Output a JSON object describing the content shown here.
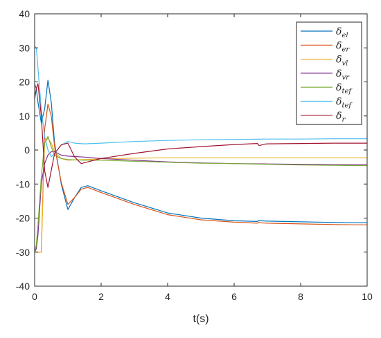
{
  "chart_data": {
    "type": "line",
    "xlabel": "t(s)",
    "ylabel": "",
    "xlim": [
      0,
      10
    ],
    "ylim": [
      -40,
      40
    ],
    "xticks": [
      0,
      2,
      4,
      6,
      8,
      10
    ],
    "yticks": [
      -40,
      -30,
      -20,
      -10,
      0,
      10,
      20,
      30,
      40
    ],
    "grid": false,
    "legend_placement": "top-right",
    "series": [
      {
        "name": "δel",
        "symbol": "δ",
        "subscript": "el",
        "color": "#0072BD",
        "x": [
          0,
          0.05,
          0.1,
          0.2,
          0.3,
          0.4,
          0.5,
          0.6,
          0.8,
          1.0,
          1.2,
          1.4,
          1.6,
          2,
          3,
          4,
          5,
          6,
          6.7,
          6.75,
          6.8,
          7,
          8,
          9,
          10
        ],
        "y": [
          19.5,
          18,
          14,
          8,
          12,
          20.5,
          14,
          2,
          -10,
          -17.5,
          -14,
          -11,
          -10.5,
          -12,
          -15.5,
          -18.5,
          -20,
          -20.8,
          -21,
          -20.6,
          -20.8,
          -20.9,
          -21.1,
          -21.3,
          -21.4
        ]
      },
      {
        "name": "δer",
        "symbol": "δ",
        "subscript": "er",
        "color": "#D95319",
        "x": [
          0,
          0.05,
          0.1,
          0.2,
          0.3,
          0.4,
          0.5,
          0.6,
          0.8,
          1.0,
          1.2,
          1.4,
          1.6,
          2,
          3,
          4,
          5,
          6,
          6.7,
          6.75,
          6.8,
          7,
          8,
          9,
          10
        ],
        "y": [
          -30,
          -30,
          -30,
          -30,
          6,
          13.5,
          10,
          1,
          -9.5,
          -16,
          -14,
          -11.5,
          -11,
          -12.5,
          -16,
          -19,
          -20.5,
          -21.2,
          -21.5,
          -21.2,
          -21.4,
          -21.5,
          -21.7,
          -21.9,
          -22
        ]
      },
      {
        "name": "δvl",
        "symbol": "δ",
        "subscript": "vl",
        "color": "#EDB120",
        "x": [
          0,
          0.05,
          0.1,
          0.2,
          0.3,
          0.4,
          0.5,
          0.6,
          0.8,
          1.0,
          1.5,
          2,
          3,
          4,
          5,
          6,
          7,
          8,
          9,
          10
        ],
        "y": [
          -30,
          -30,
          -30,
          -30,
          2,
          3.5,
          2,
          -0.5,
          -2.5,
          -3,
          -2.8,
          -2.6,
          -2.4,
          -2.3,
          -2.3,
          -2.3,
          -2.3,
          -2.3,
          -2.3,
          -2.3
        ]
      },
      {
        "name": "δvr",
        "symbol": "δ",
        "subscript": "vr",
        "color": "#7E2F8E",
        "x": [
          0,
          0.05,
          0.1,
          0.2,
          0.3,
          0.4,
          0.5,
          0.6,
          0.8,
          1.0,
          1.5,
          2,
          3,
          4,
          5,
          6,
          7,
          8,
          9,
          10
        ],
        "y": [
          -30,
          -29,
          -25,
          -10,
          -4,
          -1.5,
          -0.5,
          -0.5,
          -1.5,
          -1.8,
          -2.1,
          -2.5,
          -3,
          -3.5,
          -3.8,
          -4,
          -4.1,
          -4.2,
          -4.3,
          -4.3
        ]
      },
      {
        "name": "δtef",
        "symbol": "δ",
        "subscript": "tef",
        "color": "#77AC30",
        "x": [
          0,
          0.05,
          0.1,
          0.2,
          0.3,
          0.4,
          0.5,
          0.6,
          0.8,
          1.0,
          1.5,
          2,
          3,
          4,
          5,
          6,
          7,
          8,
          9,
          10
        ],
        "y": [
          -30,
          -28,
          -22,
          -8,
          2,
          4,
          1,
          -1.5,
          -2.5,
          -2.8,
          -3,
          -3,
          -3.3,
          -3.6,
          -3.9,
          -4,
          -4.2,
          -4.4,
          -4.5,
          -4.6
        ]
      },
      {
        "name": "δtef",
        "symbol": "δ",
        "subscript": "tef",
        "color": "#4DBEEE",
        "x": [
          0,
          0.05,
          0.1,
          0.2,
          0.3,
          0.4,
          0.5,
          0.6,
          0.8,
          1.0,
          1.2,
          1.5,
          2,
          3,
          4,
          5,
          6,
          7,
          8,
          9,
          10
        ],
        "y": [
          30.5,
          30,
          24,
          12,
          4,
          0,
          -2,
          -1,
          1.5,
          2.5,
          2,
          1.8,
          2,
          2.5,
          2.8,
          3,
          3.1,
          3.2,
          3.2,
          3.3,
          3.3
        ]
      },
      {
        "name": "δr",
        "symbol": "δ",
        "subscript": "r",
        "color": "#A2142F",
        "x": [
          0,
          0.05,
          0.1,
          0.2,
          0.3,
          0.4,
          0.5,
          0.6,
          0.8,
          1.0,
          1.2,
          1.4,
          1.6,
          2,
          3,
          4,
          5,
          6,
          6.7,
          6.75,
          6.8,
          6.9,
          7,
          8,
          9,
          10
        ],
        "y": [
          15,
          18,
          19.5,
          10,
          -6,
          -11,
          -6,
          -1,
          1.5,
          2,
          -2,
          -4,
          -3.5,
          -2.5,
          -1,
          0.3,
          1,
          1.6,
          1.9,
          1.3,
          1.4,
          1.7,
          1.8,
          1.9,
          2,
          2
        ]
      }
    ]
  }
}
